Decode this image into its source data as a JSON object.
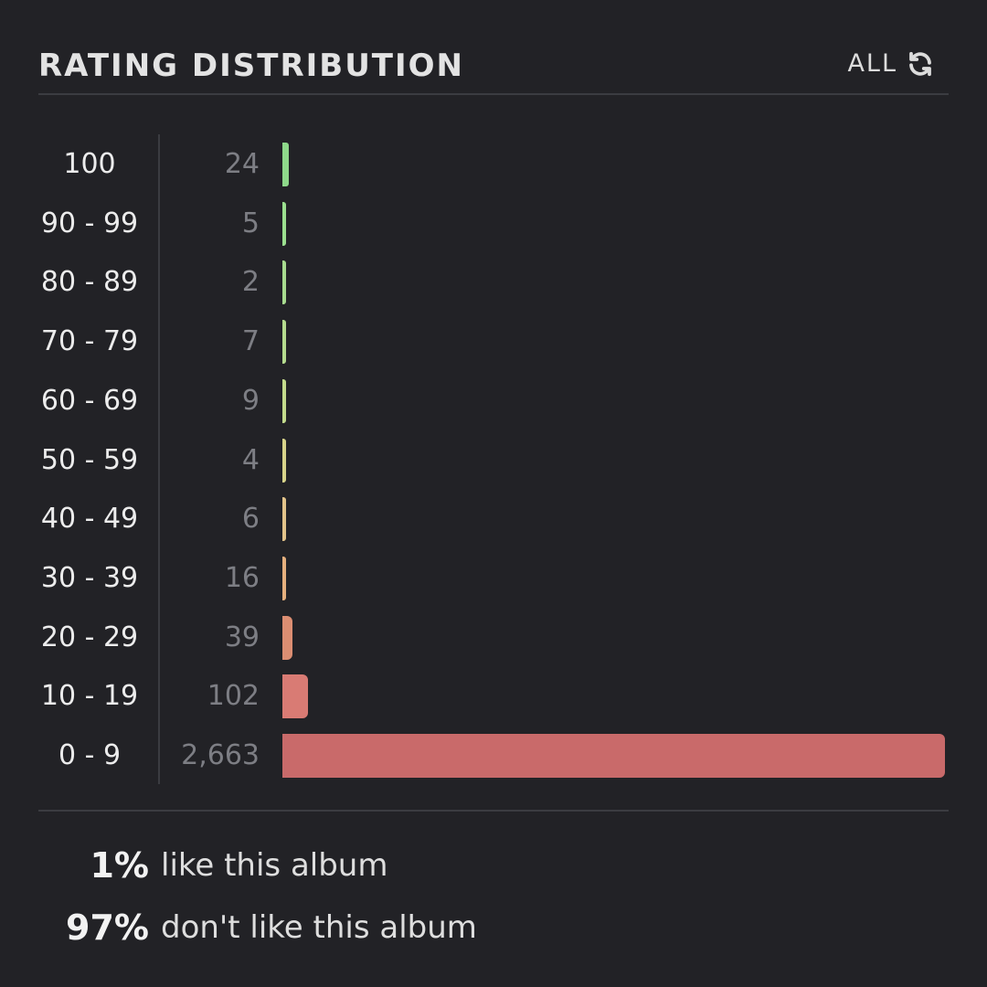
{
  "header": {
    "title": "RATING DISTRIBUTION",
    "filter_label": "ALL",
    "filter_icon": "refresh-icon"
  },
  "chart_data": {
    "type": "bar",
    "orientation": "horizontal",
    "categories": [
      "100",
      "90 - 99",
      "80 - 89",
      "70 - 79",
      "60 - 69",
      "50 - 59",
      "40 - 49",
      "30 - 39",
      "20 - 29",
      "10 - 19",
      "0 - 9"
    ],
    "values": [
      24,
      5,
      2,
      7,
      9,
      4,
      6,
      16,
      39,
      102,
      2663
    ],
    "value_labels": [
      "24",
      "5",
      "2",
      "7",
      "9",
      "4",
      "6",
      "16",
      "39",
      "102",
      "2,663"
    ],
    "colors": [
      "#8ed88a",
      "#9be08f",
      "#a8dc8f",
      "#b5dc8e",
      "#c4dc8c",
      "#d8d48a",
      "#e3c48a",
      "#e6b07e",
      "#dc8e72",
      "#d97b74",
      "#c96a6a"
    ],
    "xlabel": "",
    "ylabel": "",
    "xlim": [
      0,
      2663
    ],
    "grid": false,
    "legend": "none"
  },
  "summary": {
    "like_pct": "1%",
    "like_text": "like this album",
    "dislike_pct": "97%",
    "dislike_text": "don't like this album"
  }
}
